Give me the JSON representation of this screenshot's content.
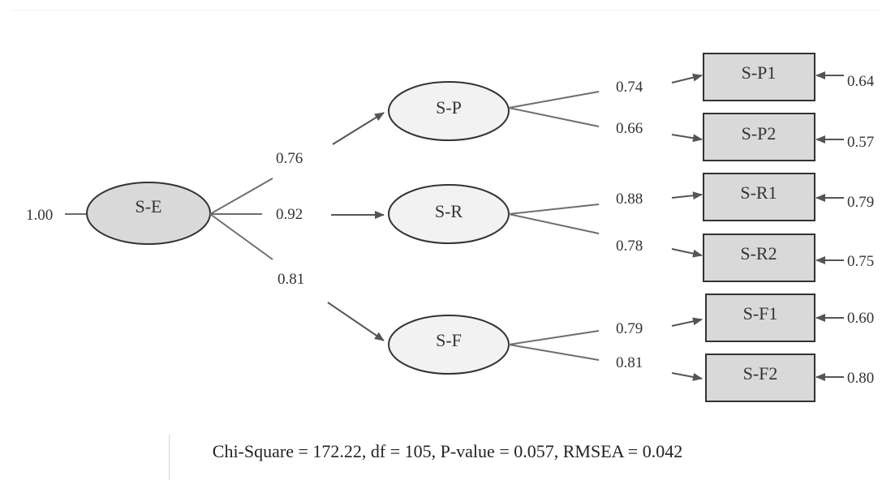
{
  "root": {
    "label": "S-E",
    "variance": "1.00"
  },
  "factors": [
    {
      "id": "sp",
      "label": "S-P",
      "loading": "0.76"
    },
    {
      "id": "sr",
      "label": "S-R",
      "loading": "0.92"
    },
    {
      "id": "sf",
      "label": "S-F",
      "loading": "0.81"
    }
  ],
  "indicators": [
    {
      "id": "sp1",
      "label": "S-P1",
      "loading": "0.74",
      "error": "0.64"
    },
    {
      "id": "sp2",
      "label": "S-P2",
      "loading": "0.66",
      "error": "0.57"
    },
    {
      "id": "sr1",
      "label": "S-R1",
      "loading": "0.88",
      "error": "0.79"
    },
    {
      "id": "sr2",
      "label": "S-R2",
      "loading": "0.78",
      "error": "0.75"
    },
    {
      "id": "sf1",
      "label": "S-F1",
      "loading": "0.79",
      "error": "0.60"
    },
    {
      "id": "sf2",
      "label": "S-F2",
      "loading": "0.81",
      "error": "0.80"
    }
  ],
  "fit_statistics": "Chi-Square = 172.22, df = 105, P-value = 0.057, RMSEA = 0.042",
  "colors": {
    "root_fill": "#d9d9d9",
    "factor_fill": "#f2f2f2",
    "indicator_fill": "#d9d9d9",
    "stroke": "#333333",
    "line": "#6e6e6e"
  }
}
